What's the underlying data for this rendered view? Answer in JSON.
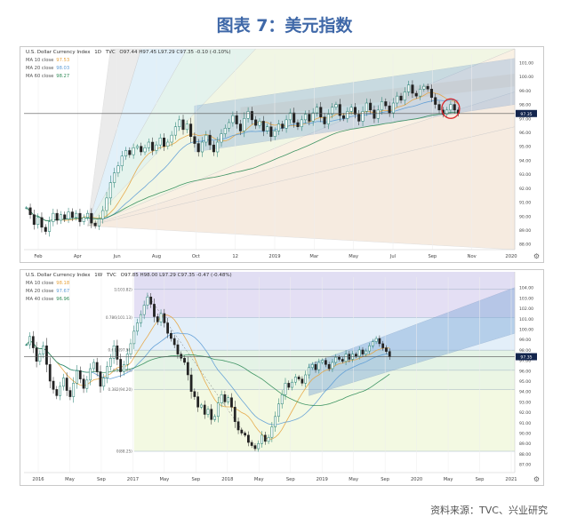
{
  "figure_title": "图表 7：美元指数",
  "source_note": "资料来源：TVC、兴业研究",
  "colors": {
    "title": "#3f68a8",
    "price": "#1a1a1a",
    "up": "#1b7a6b",
    "down": "#222222",
    "ma10": "#e6a23c",
    "ma20": "#5b9bd5",
    "ma60": "#2e8b57",
    "current_line": "#555555",
    "highlight_circle": "#d9262a",
    "current_badge": "#13254d"
  },
  "chart_data": [
    {
      "type": "line",
      "header": {
        "name": "U.S. Dollar Currency Index",
        "interval": "1D",
        "source": "TVC",
        "ohlc": "O97.44 H97.45 L97.29 C97.35 -0.10 (-0.10%)"
      },
      "legend": [
        {
          "name": "MA 10 close",
          "value": "97.53",
          "color": "#e6a23c"
        },
        {
          "name": "MA 20 close",
          "value": "98.03",
          "color": "#5b9bd5"
        },
        {
          "name": "MA 60 close",
          "value": "98.27",
          "color": "#2e8b57"
        }
      ],
      "y_ticks": [
        "101.00",
        "100.00",
        "99.00",
        "98.00",
        "97.00",
        "96.00",
        "95.00",
        "94.00",
        "93.00",
        "92.00",
        "91.00",
        "90.00",
        "89.00",
        "88.00"
      ],
      "y_range": [
        87.6,
        101.6
      ],
      "x_ticks": [
        "Feb",
        "Apr",
        "Jun",
        "Aug",
        "Oct",
        "12",
        "2019",
        "Mar",
        "May",
        "Jul",
        "Sep",
        "Nov",
        "2020"
      ],
      "current_value": "97.35",
      "series": [
        {
          "values": [
            90.6,
            90.1,
            89.4,
            89.9,
            89.2,
            88.9,
            89.6,
            90.2,
            89.7,
            90.1,
            89.8,
            90.3,
            89.9,
            90.2,
            89.6,
            89.9,
            90.2,
            89.5,
            89.3,
            89.8,
            90.4,
            91.3,
            92.4,
            93.1,
            93.6,
            94.3,
            94.7,
            94.4,
            94.9,
            95.0,
            94.6,
            94.9,
            95.3,
            94.7,
            95.1,
            95.6,
            95.0,
            95.3,
            95.8,
            96.4,
            96.9,
            96.2,
            96.6,
            95.7,
            95.2,
            94.6,
            95.3,
            95.8,
            95.1,
            94.6,
            95.3,
            95.9,
            96.3,
            96.7,
            97.2,
            96.6,
            96.1,
            97.0,
            97.5,
            96.9,
            96.5,
            96.8,
            96.1,
            96.4,
            95.7,
            96.1,
            96.6,
            96.3,
            96.9,
            97.4,
            96.7,
            96.4,
            96.9,
            97.3,
            96.8,
            97.4,
            97.8,
            97.1,
            96.6,
            97.3,
            97.8,
            98.0,
            97.2,
            97.0,
            97.5,
            97.8,
            97.3,
            96.8,
            97.5,
            98.1,
            97.6,
            97.0,
            97.6,
            98.2,
            97.9,
            97.4,
            98.1,
            98.6,
            98.3,
            98.9,
            99.4,
            98.8,
            98.6,
            99.1,
            99.3,
            99.1,
            98.5,
            98.0,
            97.6,
            97.3,
            97.6,
            98.0,
            97.6,
            97.35
          ]
        }
      ]
    },
    {
      "type": "line",
      "header": {
        "name": "U.S. Dollar Currency Index",
        "interval": "1W",
        "source": "TVC",
        "ohlc": "O97.85 H98.00 L97.29 C97.35 -0.47 (-0.48%)"
      },
      "legend": [
        {
          "name": "MA 10 close",
          "value": "98.18",
          "color": "#e6a23c"
        },
        {
          "name": "MA 20 close",
          "value": "97.67",
          "color": "#5b9bd5"
        },
        {
          "name": "MA 40 close",
          "value": "96.96",
          "color": "#2e8b57"
        }
      ],
      "y_ticks": [
        "104.00",
        "103.00",
        "102.00",
        "101.00",
        "100.00",
        "99.00",
        "98.00",
        "97.00",
        "96.00",
        "95.00",
        "94.00",
        "93.00",
        "92.00",
        "91.00",
        "90.00",
        "89.00",
        "88.00",
        "87.00"
      ],
      "y_range": [
        86.2,
        105.0
      ],
      "x_ticks": [
        "2016",
        "May",
        "Sep",
        "2017",
        "May",
        "Sep",
        "2018",
        "May",
        "Sep",
        "2019",
        "May",
        "Sep",
        "2020",
        "May",
        "Sep",
        "2021"
      ],
      "current_value": "97.35",
      "fib_levels": [
        {
          "label": "1(103.82)",
          "value": 103.82
        },
        {
          "label": "0.786(101.13)",
          "value": 101.13
        },
        {
          "label": "0.618(97.98)",
          "value": 97.98
        },
        {
          "label": "0.5(96.04)",
          "value": 96.04
        },
        {
          "label": "0.382(94.20)",
          "value": 94.2
        },
        {
          "label": "0(88.25)",
          "value": 88.25
        }
      ],
      "series": [
        {
          "values": [
            98.5,
            99.3,
            98.2,
            96.9,
            97.6,
            98.4,
            96.6,
            95.0,
            94.2,
            93.6,
            94.5,
            95.3,
            94.1,
            93.5,
            94.8,
            96.0,
            95.2,
            94.3,
            95.1,
            96.2,
            96.8,
            95.9,
            94.5,
            95.3,
            96.4,
            97.2,
            98.4,
            97.1,
            95.9,
            96.6,
            97.6,
            98.6,
            99.8,
            100.6,
            101.4,
            102.3,
            103.1,
            102.4,
            101.2,
            100.7,
            101.5,
            100.6,
            99.6,
            99.1,
            98.5,
            97.6,
            97.2,
            96.8,
            95.6,
            94.0,
            93.5,
            92.5,
            92.7,
            91.8,
            92.3,
            91.3,
            91.6,
            92.9,
            93.7,
            93.0,
            93.4,
            92.5,
            91.1,
            90.3,
            90.0,
            89.8,
            89.1,
            88.8,
            88.5,
            89.0,
            89.8,
            89.2,
            89.6,
            90.6,
            91.6,
            92.8,
            93.7,
            94.8,
            94.4,
            94.9,
            95.4,
            95.2,
            94.8,
            95.6,
            96.3,
            96.6,
            96.1,
            96.8,
            97.0,
            96.6,
            96.2,
            96.8,
            97.3,
            97.1,
            96.9,
            97.6,
            97.1,
            97.6,
            97.4,
            98.0,
            97.6,
            97.9,
            98.4,
            98.8,
            99.1,
            98.6,
            98.2,
            97.85,
            97.35
          ]
        }
      ]
    }
  ]
}
